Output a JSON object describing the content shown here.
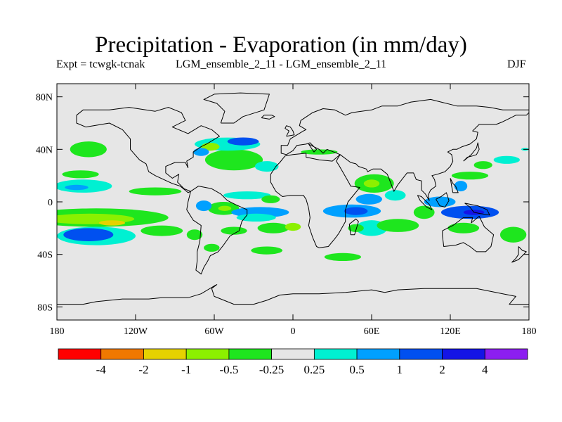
{
  "chart_data": {
    "type": "heatmap",
    "title": "Precipitation - Evaporation (in mm/day)",
    "experiment_label": "Expt = tcwgk-tcnak",
    "comparison_label": "LGM_ensemble_2_11 - LGM_ensemble_2_11",
    "season": "DJF",
    "xlim": [
      -180,
      180
    ],
    "ylim": [
      -90,
      90
    ],
    "x_ticks": [
      {
        "value": -180,
        "label": "180"
      },
      {
        "value": -120,
        "label": "120W"
      },
      {
        "value": -60,
        "label": "60W"
      },
      {
        "value": 0,
        "label": "0"
      },
      {
        "value": 60,
        "label": "60E"
      },
      {
        "value": 120,
        "label": "120E"
      },
      {
        "value": 180,
        "label": "180"
      }
    ],
    "y_ticks": [
      {
        "value": 80,
        "label": "80N"
      },
      {
        "value": 40,
        "label": "40N"
      },
      {
        "value": 0,
        "label": "0"
      },
      {
        "value": -40,
        "label": "40S"
      },
      {
        "value": -80,
        "label": "80S"
      }
    ],
    "colorbar": {
      "bins": [
        {
          "color": "#ff0000"
        },
        {
          "color": "#f07800"
        },
        {
          "color": "#e6d200"
        },
        {
          "color": "#8cf000"
        },
        {
          "color": "#1ee61e"
        },
        {
          "color": "#e6e6e6"
        },
        {
          "color": "#00f0d2"
        },
        {
          "color": "#00a0ff"
        },
        {
          "color": "#0050f0"
        },
        {
          "color": "#1414e6"
        },
        {
          "color": "#8c1ef0"
        }
      ],
      "boundary_labels": [
        "-4",
        "-2",
        "-1",
        "-0.5",
        "-0.25",
        "0.25",
        "0.5",
        "1",
        "2",
        "4"
      ]
    },
    "anomaly_regions": [
      {
        "bin": 4,
        "lon": -162,
        "lat": 21,
        "rlon": 14,
        "rlat": 3
      },
      {
        "bin": 6,
        "lon": -160,
        "lat": 12,
        "rlon": 22,
        "rlat": 5
      },
      {
        "bin": 7,
        "lon": -165,
        "lat": 11,
        "rlon": 9,
        "rlat": 2
      },
      {
        "bin": 4,
        "lon": -156,
        "lat": 40,
        "rlon": 14,
        "rlat": 6
      },
      {
        "bin": 4,
        "lon": -150,
        "lat": -12,
        "rlon": 55,
        "rlat": 7
      },
      {
        "bin": 3,
        "lon": -155,
        "lat": -13,
        "rlon": 34,
        "rlat": 4
      },
      {
        "bin": 2,
        "lon": -138,
        "lat": -16,
        "rlon": 10,
        "rlat": 2
      },
      {
        "bin": 6,
        "lon": -150,
        "lat": -26,
        "rlon": 30,
        "rlat": 7
      },
      {
        "bin": 8,
        "lon": -156,
        "lat": -25,
        "rlon": 19,
        "rlat": 5
      },
      {
        "bin": 4,
        "lon": -100,
        "lat": -22,
        "rlon": 16,
        "rlat": 4
      },
      {
        "bin": 4,
        "lon": -45,
        "lat": 32,
        "rlon": 22,
        "rlat": 8
      },
      {
        "bin": 6,
        "lon": -50,
        "lat": 44,
        "rlon": 25,
        "rlat": 5
      },
      {
        "bin": 8,
        "lon": -38,
        "lat": 46,
        "rlon": 12,
        "rlat": 3
      },
      {
        "bin": 3,
        "lon": -63,
        "lat": 42,
        "rlon": 7,
        "rlat": 3
      },
      {
        "bin": 7,
        "lon": -70,
        "lat": 38,
        "rlon": 6,
        "rlat": 3
      },
      {
        "bin": 6,
        "lon": -20,
        "lat": 27,
        "rlon": 9,
        "rlat": 4
      },
      {
        "bin": 4,
        "lon": -105,
        "lat": 8,
        "rlon": 20,
        "rlat": 3
      },
      {
        "bin": 6,
        "lon": -35,
        "lat": 5,
        "rlon": 18,
        "rlat": 3
      },
      {
        "bin": 4,
        "lon": -17,
        "lat": 2,
        "rlon": 7,
        "rlat": 3
      },
      {
        "bin": 4,
        "lon": -53,
        "lat": -5,
        "rlon": 12,
        "rlat": 5
      },
      {
        "bin": 3,
        "lon": -52,
        "lat": -5,
        "rlon": 5,
        "rlat": 2
      },
      {
        "bin": 7,
        "lon": -25,
        "lat": -8,
        "rlon": 22,
        "rlat": 4
      },
      {
        "bin": 6,
        "lon": -28,
        "lat": -12,
        "rlon": 15,
        "rlat": 3
      },
      {
        "bin": 4,
        "lon": -15,
        "lat": -20,
        "rlon": 12,
        "rlat": 4
      },
      {
        "bin": 3,
        "lon": 0,
        "lat": -19,
        "rlon": 6,
        "rlat": 3
      },
      {
        "bin": 7,
        "lon": -68,
        "lat": -3,
        "rlon": 6,
        "rlat": 4
      },
      {
        "bin": 4,
        "lon": -45,
        "lat": -22,
        "rlon": 10,
        "rlat": 3
      },
      {
        "bin": 4,
        "lon": -75,
        "lat": -25,
        "rlon": 6,
        "rlat": 4
      },
      {
        "bin": 4,
        "lon": -62,
        "lat": -35,
        "rlon": 6,
        "rlat": 3
      },
      {
        "bin": 4,
        "lon": -20,
        "lat": -37,
        "rlon": 12,
        "rlat": 3
      },
      {
        "bin": 7,
        "lon": 45,
        "lat": -7,
        "rlon": 22,
        "rlat": 5
      },
      {
        "bin": 8,
        "lon": 48,
        "lat": -7,
        "rlon": 9,
        "rlat": 3
      },
      {
        "bin": 6,
        "lon": 60,
        "lat": -20,
        "rlon": 12,
        "rlat": 6
      },
      {
        "bin": 4,
        "lon": 48,
        "lat": -20,
        "rlon": 6,
        "rlat": 3
      },
      {
        "bin": 4,
        "lon": 38,
        "lat": -42,
        "rlon": 14,
        "rlat": 3
      },
      {
        "bin": 4,
        "lon": 20,
        "lat": 38,
        "rlon": 14,
        "rlat": 2
      },
      {
        "bin": 4,
        "lon": 62,
        "lat": 14,
        "rlon": 15,
        "rlat": 7
      },
      {
        "bin": 3,
        "lon": 60,
        "lat": 14,
        "rlon": 6,
        "rlat": 3
      },
      {
        "bin": 7,
        "lon": 58,
        "lat": 2,
        "rlon": 10,
        "rlat": 4
      },
      {
        "bin": 6,
        "lon": 78,
        "lat": 5,
        "rlon": 8,
        "rlat": 4
      },
      {
        "bin": 4,
        "lon": 80,
        "lat": -18,
        "rlon": 16,
        "rlat": 5
      },
      {
        "bin": 4,
        "lon": 100,
        "lat": -8,
        "rlon": 8,
        "rlat": 5
      },
      {
        "bin": 8,
        "lon": 135,
        "lat": -8,
        "rlon": 22,
        "rlat": 5
      },
      {
        "bin": 9,
        "lon": 138,
        "lat": -8,
        "rlon": 8,
        "rlat": 2
      },
      {
        "bin": 7,
        "lon": 112,
        "lat": 0,
        "rlon": 12,
        "rlat": 4
      },
      {
        "bin": 4,
        "lon": 135,
        "lat": 20,
        "rlon": 14,
        "rlat": 3
      },
      {
        "bin": 7,
        "lon": 128,
        "lat": 12,
        "rlon": 5,
        "rlat": 4
      },
      {
        "bin": 4,
        "lon": 145,
        "lat": 28,
        "rlon": 7,
        "rlat": 3
      },
      {
        "bin": 4,
        "lon": 130,
        "lat": -20,
        "rlon": 12,
        "rlat": 4
      },
      {
        "bin": 4,
        "lon": 168,
        "lat": -25,
        "rlon": 10,
        "rlat": 6
      },
      {
        "bin": 6,
        "lon": 163,
        "lat": 32,
        "rlon": 10,
        "rlat": 3
      },
      {
        "bin": 6,
        "lon": 177,
        "lat": 40,
        "rlon": 3,
        "rlat": 1
      }
    ]
  }
}
